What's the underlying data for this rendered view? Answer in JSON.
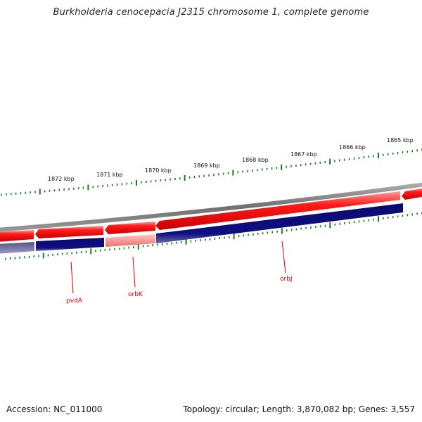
{
  "title": "Burkholderia cenocepacia J2315 chromosome 1, complete genome",
  "footer": {
    "accession": "Accession: NC_011000",
    "summary": "Topology: circular; Length: 3,870,082 bp; Genes: 3,557"
  },
  "colors": {
    "backbone": "#808080",
    "forward_gene": "#e00000",
    "forward_gene_light": "#f08080",
    "reverse_cds": "#0a0a78",
    "reverse_cds_light": "#7070a8",
    "tick": "#1e7a1e",
    "gene_label": "#d40000"
  },
  "scale_labels": [
    "1872 kbp",
    "1871 kbp",
    "1870 kbp",
    "1869 kbp",
    "1868 kbp",
    "1867 kbp",
    "1866 kbp",
    "1865 kbp"
  ],
  "gene_labels": [
    "pvdA",
    "orbK",
    "orbJ"
  ]
}
